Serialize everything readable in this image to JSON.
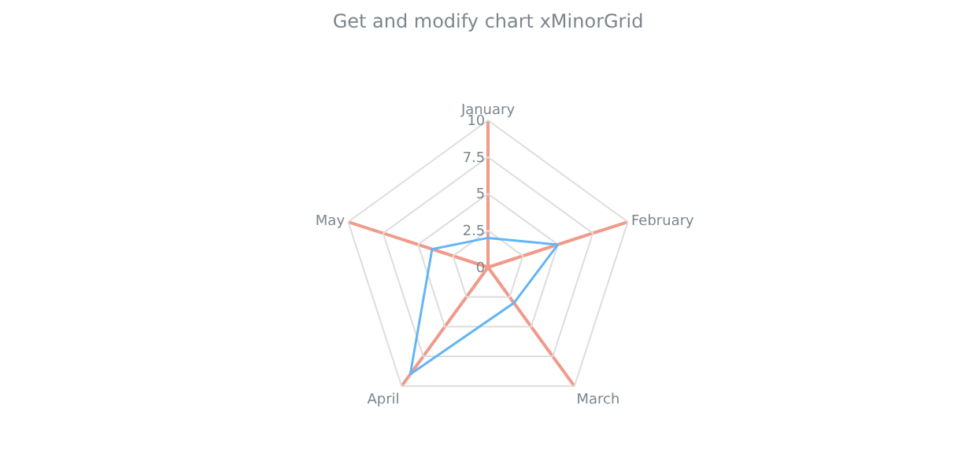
{
  "chart_data": {
    "type": "radar",
    "title": "Get and modify chart xMinorGrid",
    "categories": [
      "January",
      "February",
      "March",
      "April",
      "May"
    ],
    "series": [
      {
        "color": "#64b5f6",
        "values": [
          2,
          5,
          3,
          9,
          4
        ]
      }
    ],
    "ylim": [
      0,
      10
    ],
    "yticks": [
      0,
      2.5,
      5,
      7.5,
      10
    ],
    "grid": true,
    "legend": false,
    "marker": "none"
  }
}
